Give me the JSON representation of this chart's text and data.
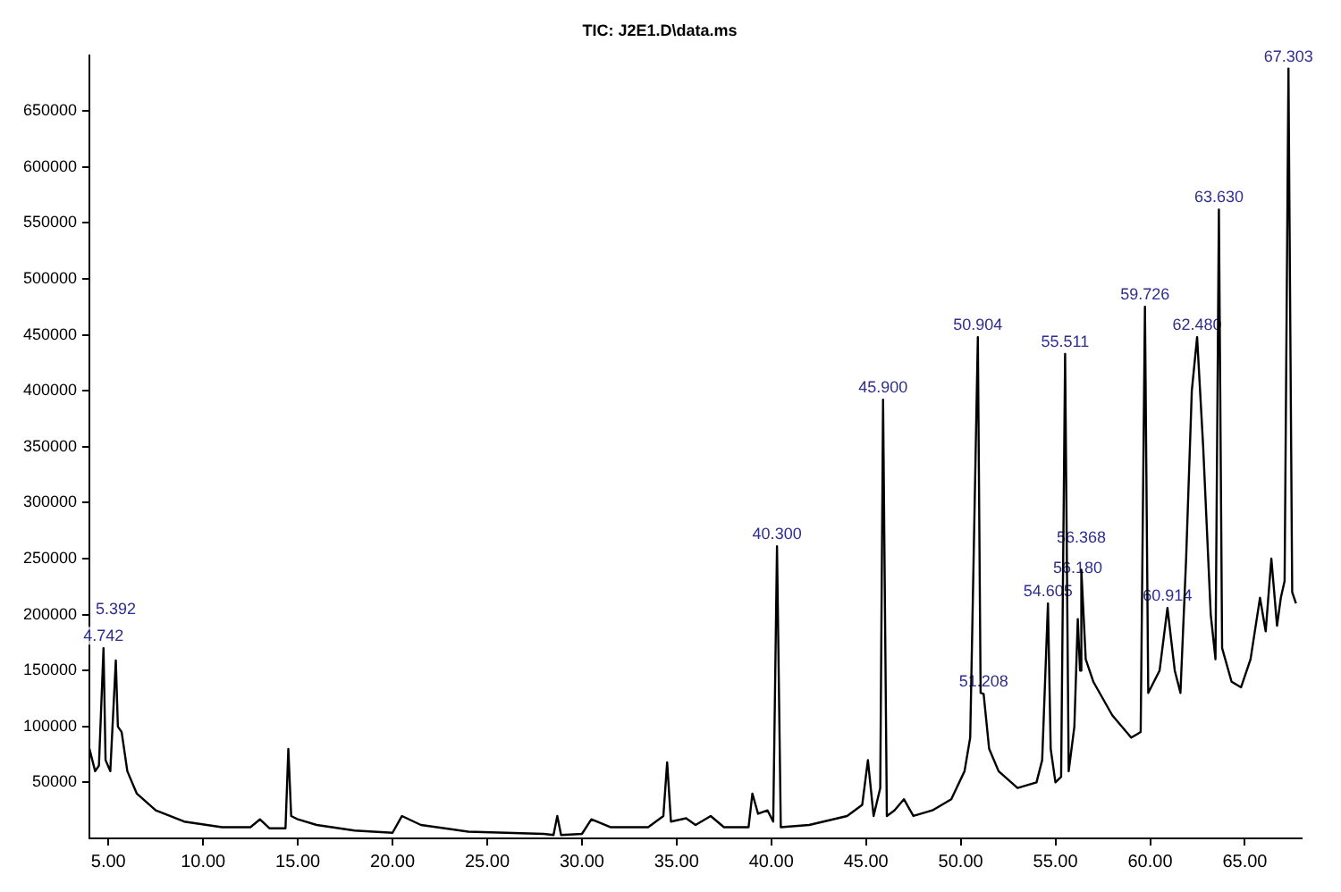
{
  "chart_data": {
    "type": "line",
    "title": "TIC: J2E1.D\\data.ms",
    "x": [
      4.0,
      4.3,
      4.5,
      4.742,
      4.85,
      5.1,
      5.392,
      5.5,
      5.7,
      6.0,
      6.5,
      7.5,
      9,
      11,
      12.5,
      13,
      13.5,
      14.35,
      14.5,
      14.65,
      15.0,
      16,
      18,
      20,
      20.5,
      21.5,
      24,
      28,
      28.5,
      28.7,
      28.9,
      30,
      30.5,
      31.5,
      33.5,
      34.3,
      34.5,
      34.7,
      35.5,
      36,
      36.8,
      37.5,
      38.8,
      39,
      39.3,
      39.8,
      40.1,
      40.3,
      40.5,
      42,
      44,
      44.8,
      45.1,
      45.4,
      45.75,
      45.9,
      46.1,
      46.5,
      47,
      47.5,
      48.5,
      49.5,
      50.2,
      50.5,
      50.904,
      51.05,
      51.208,
      51.5,
      52,
      53,
      54,
      54.3,
      54.605,
      54.75,
      55,
      55.3,
      55.511,
      55.7,
      56,
      56.18,
      56.3,
      56.368,
      56.6,
      57,
      58,
      59,
      59.5,
      59.726,
      59.9,
      60.5,
      60.914,
      61.3,
      61.6,
      61.9,
      62.2,
      62.48,
      62.8,
      63.2,
      63.45,
      63.63,
      63.8,
      64.3,
      64.8,
      65.3,
      65.8,
      66.1,
      66.4,
      66.7,
      66.9,
      67.1,
      67.303,
      67.5,
      67.7
    ],
    "series": [
      {
        "color": "#000000",
        "values": [
          80000,
          60000,
          65000,
          170000,
          70000,
          60000,
          159000,
          100000,
          95000,
          60000,
          40000,
          25000,
          15000,
          10000,
          10000,
          17000,
          9000,
          9000,
          80000,
          20000,
          17000,
          12000,
          7000,
          5000,
          20000,
          12000,
          6000,
          4000,
          3000,
          20000,
          3000,
          4000,
          17000,
          10000,
          10000,
          20000,
          68000,
          15000,
          18000,
          12000,
          20000,
          10000,
          10000,
          40000,
          22000,
          25000,
          15000,
          261000,
          10000,
          12000,
          20000,
          30000,
          70000,
          20000,
          45000,
          392000,
          20000,
          25000,
          35000,
          20000,
          25000,
          35000,
          60000,
          90000,
          448000,
          130000,
          129000,
          80000,
          60000,
          45000,
          50000,
          70000,
          210000,
          80000,
          50000,
          55000,
          433000,
          60000,
          100000,
          196000,
          150000,
          240000,
          160000,
          140000,
          110000,
          90000,
          95000,
          475000,
          130000,
          150000,
          206000,
          150000,
          130000,
          250000,
          400000,
          448000,
          350000,
          200000,
          160000,
          562000,
          170000,
          140000,
          135000,
          160000,
          215000,
          185000,
          250000,
          190000,
          215000,
          230000,
          688000,
          220000,
          210000
        ]
      }
    ],
    "xlim": [
      4,
      68
    ],
    "xticks": [
      {
        "value": 5,
        "label": "5.00"
      },
      {
        "value": 10,
        "label": "10.00"
      },
      {
        "value": 15,
        "label": "15.00"
      },
      {
        "value": 20,
        "label": "20.00"
      },
      {
        "value": 25,
        "label": "25.00"
      },
      {
        "value": 30,
        "label": "30.00"
      },
      {
        "value": 35,
        "label": "35.00"
      },
      {
        "value": 40,
        "label": "40.00"
      },
      {
        "value": 45,
        "label": "45.00"
      },
      {
        "value": 50,
        "label": "50.00"
      },
      {
        "value": 55,
        "label": "55.00"
      },
      {
        "value": 60,
        "label": "60.00"
      },
      {
        "value": 65,
        "label": "65.00"
      }
    ],
    "ylim": [
      0,
      700000
    ],
    "yticks": [
      50000,
      100000,
      150000,
      200000,
      250000,
      300000,
      350000,
      400000,
      450000,
      500000,
      550000,
      600000,
      650000
    ],
    "grid": false,
    "legend": false,
    "marker": "none",
    "line_style": "solid",
    "annotations": [
      {
        "text": "4.742",
        "x": 4.742,
        "y": 170000
      },
      {
        "text": "5.392",
        "x": 5.392,
        "y": 159000
      },
      {
        "text": "40.300",
        "x": 40.3,
        "y": 261000
      },
      {
        "text": "45.900",
        "x": 45.9,
        "y": 392000
      },
      {
        "text": "50.904",
        "x": 50.904,
        "y": 448000
      },
      {
        "text": "51.208",
        "x": 51.208,
        "y": 129000
      },
      {
        "text": "54.605",
        "x": 54.605,
        "y": 210000
      },
      {
        "text": "55.511",
        "x": 55.511,
        "y": 433000
      },
      {
        "text": "56.180",
        "x": 56.18,
        "y": 196000
      },
      {
        "text": "56.368",
        "x": 56.368,
        "y": 240000
      },
      {
        "text": "59.726",
        "x": 59.726,
        "y": 475000
      },
      {
        "text": "60.914",
        "x": 60.914,
        "y": 206000
      },
      {
        "text": "62.480",
        "x": 62.48,
        "y": 448000
      },
      {
        "text": "63.630",
        "x": 63.63,
        "y": 562000
      },
      {
        "text": "67.303",
        "x": 67.303,
        "y": 688000
      }
    ]
  }
}
